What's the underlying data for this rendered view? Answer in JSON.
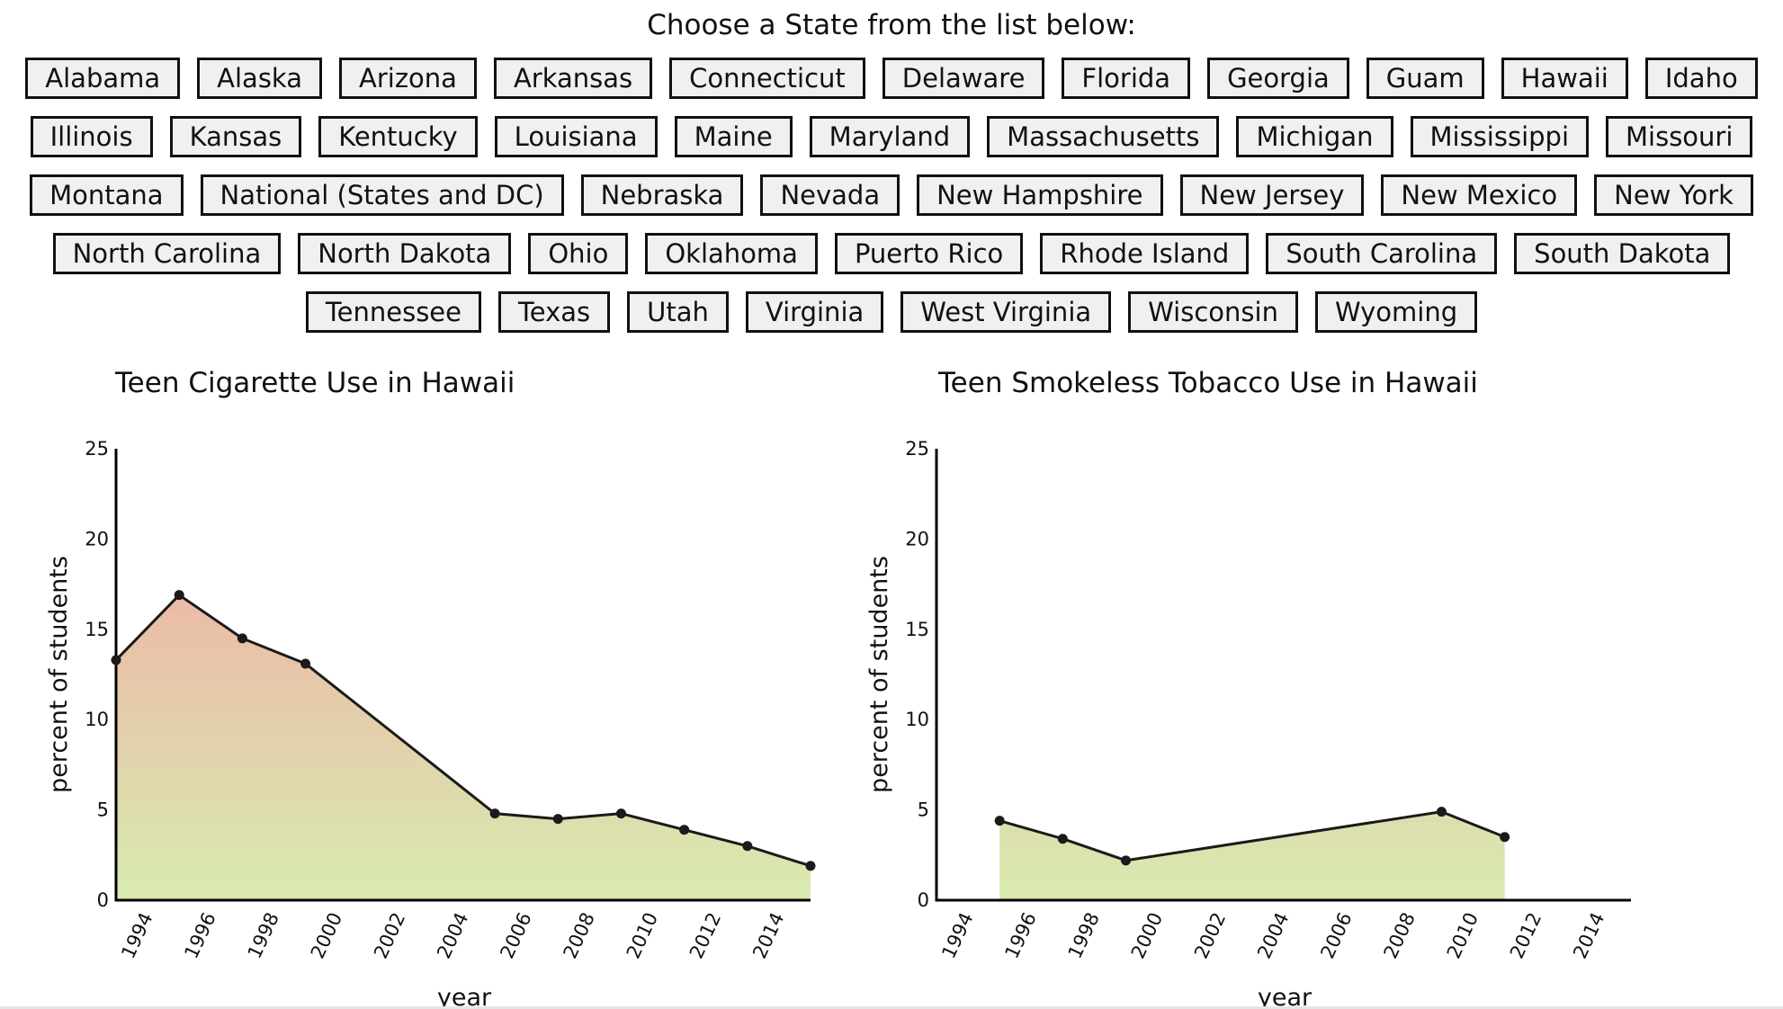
{
  "prompt": "Choose a State from the list below:",
  "states": [
    [
      "Alabama",
      "Alaska",
      "Arizona",
      "Arkansas",
      "Connecticut",
      "Delaware",
      "Florida",
      "Georgia",
      "Guam",
      "Hawaii",
      "Idaho"
    ],
    [
      "Illinois",
      "Kansas",
      "Kentucky",
      "Louisiana",
      "Maine",
      "Maryland",
      "Massachusetts",
      "Michigan",
      "Mississippi",
      "Missouri"
    ],
    [
      "Montana",
      "National (States and DC)",
      "Nebraska",
      "Nevada",
      "New Hampshire",
      "New Jersey",
      "New Mexico",
      "New York"
    ],
    [
      "North Carolina",
      "North Dakota",
      "Ohio",
      "Oklahoma",
      "Puerto Rico",
      "Rhode Island",
      "South Carolina",
      "South Dakota"
    ],
    [
      "Tennessee",
      "Texas",
      "Utah",
      "Virginia",
      "West Virginia",
      "Wisconsin",
      "Wyoming"
    ]
  ],
  "chart_data": [
    {
      "type": "area",
      "title": "Teen Cigarette Use in Hawaii",
      "xlabel": "year",
      "ylabel": "percent of students",
      "xlim": [
        1993,
        2015
      ],
      "ylim": [
        0,
        25
      ],
      "xticks": [
        "1994",
        "1996",
        "1998",
        "2000",
        "2002",
        "2004",
        "2006",
        "2008",
        "2010",
        "2012",
        "2014"
      ],
      "yticks": [
        "0",
        "5",
        "10",
        "15",
        "20",
        "25"
      ],
      "x": [
        1993,
        1995,
        1997,
        1999,
        2005,
        2007,
        2009,
        2011,
        2013,
        2015
      ],
      "y": [
        13.3,
        16.9,
        14.5,
        13.1,
        4.8,
        4.5,
        4.8,
        3.9,
        3.0,
        1.9
      ],
      "gradient_top": "#f5a3a3",
      "gradient_bottom": "#d8ebb0"
    },
    {
      "type": "area",
      "title": "Teen Smokeless Tobacco Use in Hawaii",
      "xlabel": "year",
      "ylabel": "percent of students",
      "xlim": [
        1993,
        2015
      ],
      "ylim": [
        0,
        25
      ],
      "xticks": [
        "1994",
        "1996",
        "1998",
        "2000",
        "2002",
        "2004",
        "2006",
        "2008",
        "2010",
        "2012",
        "2014"
      ],
      "yticks": [
        "0",
        "5",
        "10",
        "15",
        "20",
        "25"
      ],
      "x": [
        1995,
        1997,
        1999,
        2009,
        2011
      ],
      "y": [
        4.4,
        3.4,
        2.2,
        4.9,
        3.5
      ],
      "gradient_top": "#f5a3a3",
      "gradient_bottom": "#d8ebb0"
    }
  ]
}
